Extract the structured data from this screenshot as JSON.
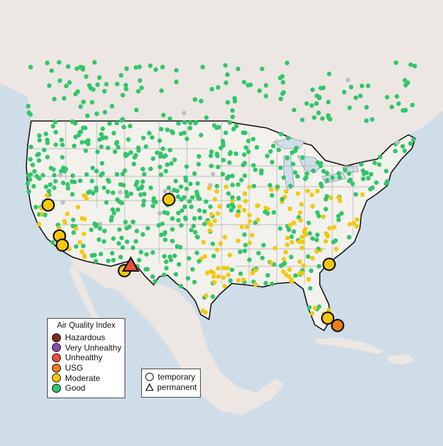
{
  "colors": {
    "water": "#cfdde8",
    "land_us": "#f3f1ec",
    "land_other": "#ece7e2",
    "border": "#111111",
    "state_line": "#a9a9a9",
    "hazardous": "#7e2a26",
    "very_unhealthy": "#8f4ab0",
    "unhealthy": "#ee4f3a",
    "usg": "#ee7c1c",
    "moderate": "#f2c80f",
    "good": "#31c56a",
    "no_data": "#bfbfbf"
  },
  "legend": {
    "title": "Air Quality Index",
    "items": [
      {
        "label": "Hazardous",
        "color": "#7e2a26"
      },
      {
        "label": "Very Unhealthy",
        "color": "#8f4ab0"
      },
      {
        "label": "Unhealthy",
        "color": "#ee4f3a"
      },
      {
        "label": "USG",
        "color": "#ee7c1c"
      },
      {
        "label": "Moderate",
        "color": "#f2c80f"
      },
      {
        "label": "Good",
        "color": "#31c56a"
      }
    ]
  },
  "monitor_legend": {
    "temporary": "temporary",
    "permanent": "permanent"
  },
  "stations": {
    "large": [
      {
        "lon": -121.6,
        "lat": 40.3,
        "aqi": "Moderate",
        "type": "temporary"
      },
      {
        "lon": -120.0,
        "lat": 36.9,
        "aqi": "Moderate",
        "type": "temporary"
      },
      {
        "lon": -119.6,
        "lat": 35.9,
        "aqi": "Moderate",
        "type": "temporary"
      },
      {
        "lon": -110.8,
        "lat": 33.1,
        "aqi": "Moderate",
        "type": "temporary"
      },
      {
        "lon": -109.9,
        "lat": 33.7,
        "aqi": "Unhealthy",
        "type": "permanent"
      },
      {
        "lon": -104.5,
        "lat": 40.9,
        "aqi": "Moderate",
        "type": "temporary"
      },
      {
        "lon": -81.8,
        "lat": 33.8,
        "aqi": "Moderate",
        "type": "temporary"
      },
      {
        "lon": -82.0,
        "lat": 27.9,
        "aqi": "Moderate",
        "type": "temporary"
      },
      {
        "lon": -80.6,
        "lat": 27.1,
        "aqi": "USG",
        "type": "temporary"
      }
    ]
  }
}
